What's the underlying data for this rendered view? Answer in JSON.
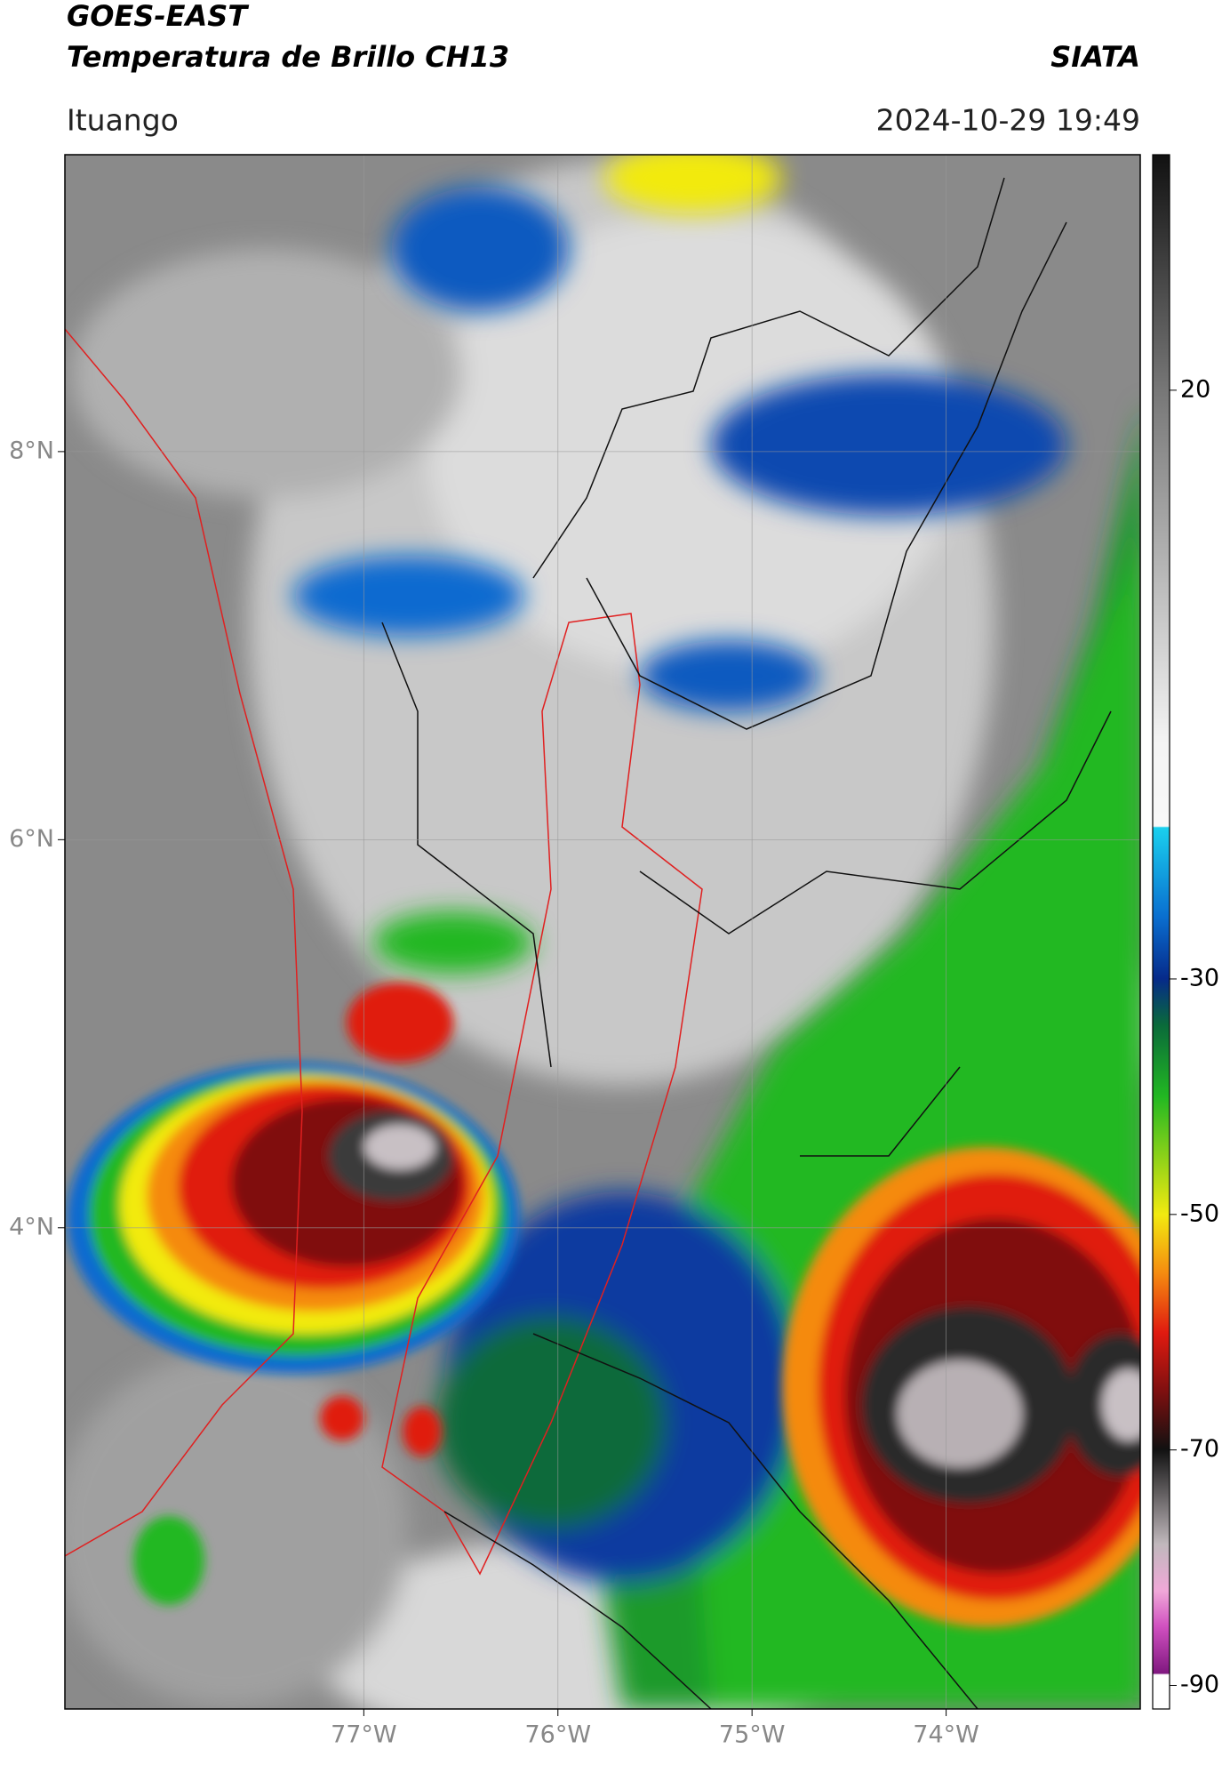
{
  "header": {
    "title": "GOES-EAST",
    "subtitle": "Temperatura de Brillo CH13",
    "agency": "SIATA",
    "location": "Ituango",
    "datetime": "2024-10-29 19:49"
  },
  "map": {
    "xlim": [
      -78.54,
      -73.0
    ],
    "ylim": [
      1.52,
      9.53
    ],
    "xticks": [
      {
        "value": -77,
        "label": "77°W"
      },
      {
        "value": -76,
        "label": "76°W"
      },
      {
        "value": -75,
        "label": "75°W"
      },
      {
        "value": -74,
        "label": "74°W"
      }
    ],
    "yticks": [
      {
        "value": 8,
        "label": "8°N"
      },
      {
        "value": 6,
        "label": "6°N"
      },
      {
        "value": 4,
        "label": "4°N"
      }
    ],
    "grid": true
  },
  "colorbar": {
    "lim": [
      -92,
      40
    ],
    "ticks": [
      20,
      -30,
      -50,
      -70,
      -90
    ]
  }
}
